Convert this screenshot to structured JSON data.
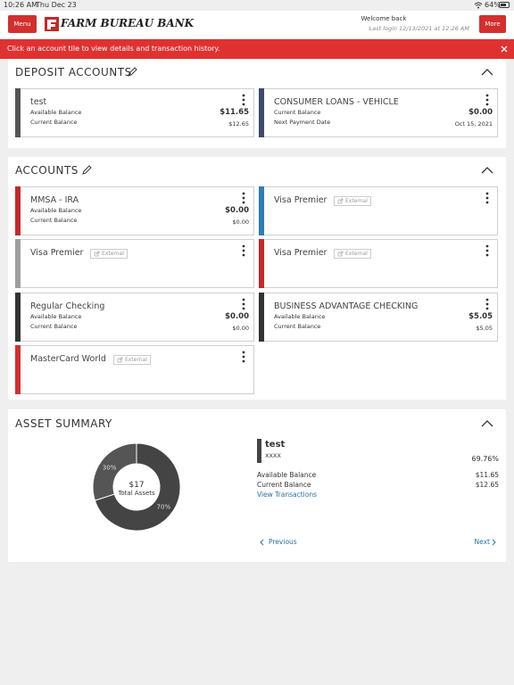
{
  "status": {
    "time": "10:26 AM",
    "date": "Thu Dec 23",
    "battery": "64%"
  },
  "header": {
    "menu": "Menu",
    "logo": "FARM BUREAU BANK",
    "welcome": "Welcome back",
    "last_login": "Last login 12/13/2021 at 12:26 AM",
    "more": "More"
  },
  "banner": {
    "text": "Click an account tile to view details and transaction history."
  },
  "deposit": {
    "title": "DEPOSIT ACCOUNTS",
    "tiles": [
      {
        "name": "test",
        "color": "#555555",
        "rows": [
          [
            "Available Balance",
            "$11.65"
          ],
          [
            "Current Balance",
            "$12.65"
          ]
        ]
      },
      {
        "name": "CONSUMER LOANS - VEHICLE",
        "color": "#3d4a6b",
        "rows": [
          [
            "Current Balance",
            "$0.00"
          ],
          [
            "Next Payment Date",
            "Oct 15, 2021"
          ]
        ]
      }
    ]
  },
  "accounts": {
    "title": "ACCOUNTS",
    "external": "External",
    "tiles": [
      {
        "name": "MMSA - IRA",
        "color": "#c62828",
        "rows": [
          [
            "Available Balance",
            "$0.00"
          ],
          [
            "Current Balance",
            "$0.00"
          ]
        ]
      },
      {
        "name": "Visa Premier",
        "color": "#2e7db3",
        "external": true
      },
      {
        "name": "Visa Premier",
        "color": "#9e9e9e",
        "external": true
      },
      {
        "name": "Visa Premier",
        "color": "#c62828",
        "external": true
      },
      {
        "name": "Regular Checking",
        "color": "#333333",
        "rows": [
          [
            "Available Balance",
            "$0.00"
          ],
          [
            "Current Balance",
            "$0.00"
          ]
        ]
      },
      {
        "name": "BUSINESS ADVANTAGE CHECKING",
        "color": "#333333",
        "rows": [
          [
            "Available Balance",
            "$5.05"
          ],
          [
            "Current Balance",
            "$5.05"
          ]
        ]
      },
      {
        "name": "MasterCard World",
        "color": "#d32f2f",
        "external": true
      }
    ]
  },
  "assets": {
    "title": "ASSET SUMMARY",
    "total": "$17",
    "total_label": "Total Assets",
    "slices": [
      {
        "value": 70,
        "label": "70%",
        "color": "#444444"
      },
      {
        "value": 30,
        "label": "30%",
        "color": "#555555"
      }
    ],
    "legend": {
      "name": "test",
      "mask": "XXXX",
      "percent": "69.76%",
      "rows": [
        [
          "Available Balance",
          "$11.65"
        ],
        [
          "Current Balance",
          "$12.65"
        ]
      ],
      "link": "View Transactions"
    },
    "previous": "Previous",
    "next": "Next"
  }
}
